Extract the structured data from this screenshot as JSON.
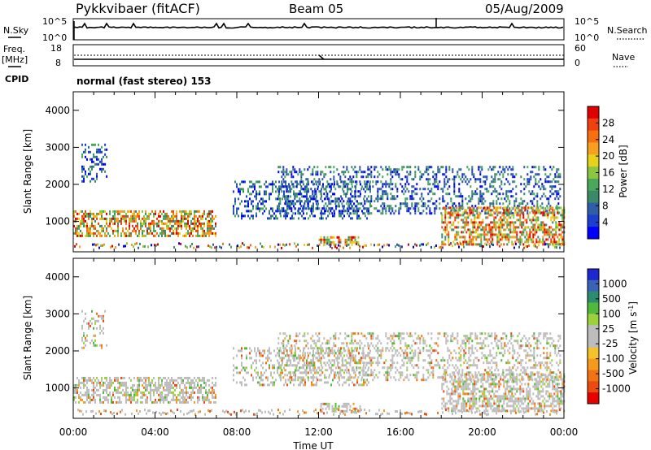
{
  "header": {
    "title": "Pykkvibaer (fitACF)",
    "beam": "Beam 05",
    "date": "05/Aug/2009"
  },
  "strips": {
    "nsky_label": "N.Sky",
    "nsky_ticks": [
      "10^5",
      "10^0"
    ],
    "nsearch_label": "N.Search",
    "nsearch_ticks": [
      "10^5",
      "10^0"
    ],
    "freq_label_1": "Freq.",
    "freq_label_2": "[MHz]",
    "freq_ticks": [
      "18",
      "8"
    ],
    "nave_label": "Nave",
    "nave_ticks": [
      "60",
      "0"
    ],
    "cpid_label": "CPID",
    "cpid_text": "normal (fast stereo) 153"
  },
  "chart_data": [
    {
      "type": "heatmap",
      "name": "power",
      "xlabel": "Time UT",
      "ylabel": "Slant Range [km]",
      "xlim": [
        0,
        24
      ],
      "ylim": [
        180,
        4500
      ],
      "x_ticks": [
        "00:00",
        "04:00",
        "08:00",
        "12:00",
        "16:00",
        "20:00",
        "00:00"
      ],
      "y_ticks": [
        "1000",
        "2000",
        "3000",
        "4000"
      ],
      "colorbar": {
        "label": "Power [dB]",
        "ticks": [
          "4",
          "8",
          "12",
          "16",
          "20",
          "24",
          "28"
        ],
        "colors": [
          "#0000ff",
          "#1d3fd0",
          "#2f5da6",
          "#3a8a6a",
          "#4aa85a",
          "#8cc63f",
          "#e6d21a",
          "#f7a020",
          "#f77010",
          "#f04010",
          "#e00000"
        ]
      },
      "echo_bands": [
        {
          "t": [
            0.4,
            1.6
          ],
          "r": [
            2100,
            3100
          ],
          "level": "weak"
        },
        {
          "t": [
            0.0,
            7.0
          ],
          "r": [
            600,
            1300
          ],
          "level": "strong"
        },
        {
          "t": [
            7.8,
            14.5
          ],
          "r": [
            1100,
            2100
          ],
          "level": "weak"
        },
        {
          "t": [
            10.0,
            23.8
          ],
          "r": [
            1200,
            2500
          ],
          "level": "weak"
        },
        {
          "t": [
            12.0,
            14.0
          ],
          "r": [
            350,
            600
          ],
          "level": "strong"
        },
        {
          "t": [
            18.0,
            24.0
          ],
          "r": [
            350,
            1400
          ],
          "level": "strong"
        }
      ]
    },
    {
      "type": "heatmap",
      "name": "velocity",
      "xlabel": "Time UT",
      "ylabel": "Slant Range [km]",
      "xlim": [
        0,
        24
      ],
      "ylim": [
        180,
        4500
      ],
      "x_ticks": [
        "00:00",
        "04:00",
        "08:00",
        "12:00",
        "16:00",
        "20:00",
        "00:00"
      ],
      "y_ticks": [
        "1000",
        "2000",
        "3000",
        "4000"
      ],
      "colorbar": {
        "label": "Velocity [m s",
        "label_sup": "-1",
        "label_end": "]",
        "ticks": [
          "1000",
          "500",
          "100",
          "25",
          "-25",
          "-100",
          "-500",
          "-1000"
        ],
        "colors": [
          "#1e28d0",
          "#3a62b6",
          "#2e8c6e",
          "#50b83a",
          "#9bd23a",
          "#bdbdbd",
          "#bdbdbd",
          "#f5c22a",
          "#f59a1e",
          "#f07412",
          "#eb4a10",
          "#e60000"
        ]
      },
      "ground_scatter_color": "#bdbdbd"
    }
  ]
}
